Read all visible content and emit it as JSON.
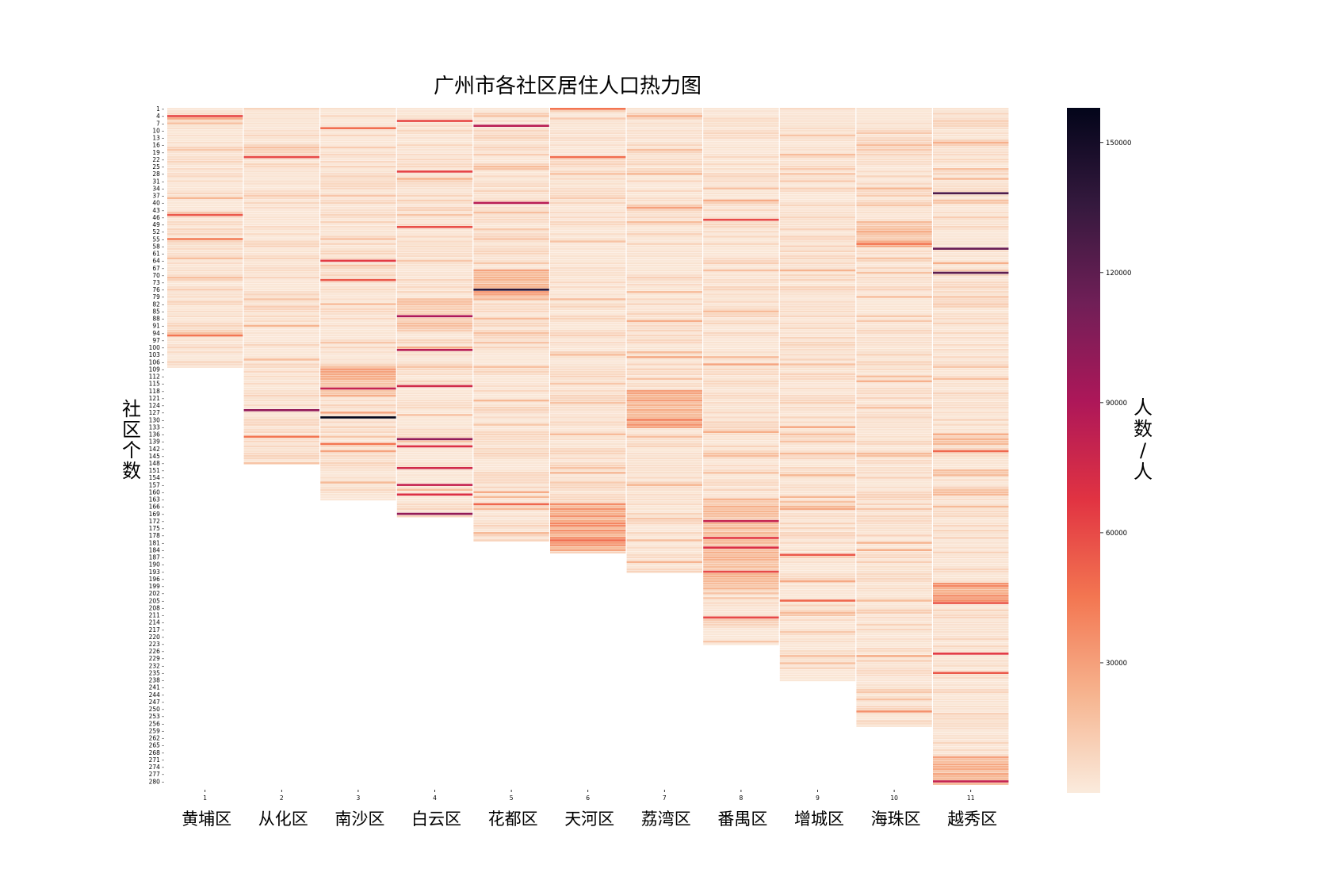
{
  "chart_data": {
    "type": "heatmap",
    "title": "广州市各社区居住人口热力图",
    "ylabel": "社区个数",
    "colorbar_label": "人数/人",
    "colorbar_ticks": [
      30000,
      60000,
      90000,
      120000,
      150000
    ],
    "color_range": [
      0,
      158000
    ],
    "colormap": "rocket_r",
    "colormap_stops": [
      "#faebdd",
      "#f6b48f",
      "#f37651",
      "#e13342",
      "#ad1759",
      "#701f57",
      "#35193e",
      "#03051a"
    ],
    "grid": false,
    "colorbar_position": "right",
    "columns": [
      {
        "index": "1",
        "name": "黄埔区",
        "rows": 108
      },
      {
        "index": "2",
        "name": "从化区",
        "rows": 148
      },
      {
        "index": "3",
        "name": "南沙区",
        "rows": 163
      },
      {
        "index": "4",
        "name": "白云区",
        "rows": 170
      },
      {
        "index": "5",
        "name": "花都区",
        "rows": 180
      },
      {
        "index": "6",
        "name": "天河区",
        "rows": 185
      },
      {
        "index": "7",
        "name": "荔湾区",
        "rows": 193
      },
      {
        "index": "8",
        "name": "番禺区",
        "rows": 223
      },
      {
        "index": "9",
        "name": "增城区",
        "rows": 238
      },
      {
        "index": "10",
        "name": "海珠区",
        "rows": 257
      },
      {
        "index": "11",
        "name": "越秀区",
        "rows": 281
      }
    ],
    "row_ticks": [
      "1",
      "4",
      "7",
      "10",
      "13",
      "16",
      "19",
      "22",
      "25",
      "28",
      "31",
      "34",
      "37",
      "40",
      "43",
      "46",
      "49",
      "52",
      "55",
      "58",
      "61",
      "64",
      "67",
      "70",
      "73",
      "76",
      "79",
      "82",
      "85",
      "88",
      "91",
      "94",
      "97",
      "100",
      "103",
      "106",
      "109",
      "112",
      "115",
      "118",
      "121",
      "124",
      "127",
      "130",
      "133",
      "136",
      "139",
      "142",
      "145",
      "148",
      "151",
      "154",
      "157",
      "160",
      "163",
      "166",
      "169",
      "172",
      "175",
      "178",
      "181",
      "184",
      "187",
      "190",
      "193",
      "196",
      "199",
      "202",
      "205",
      "208",
      "211",
      "214",
      "217",
      "220",
      "223",
      "226",
      "229",
      "232",
      "235",
      "238",
      "241",
      "244",
      "247",
      "250",
      "253",
      "256",
      "259",
      "262",
      "265",
      "268",
      "271",
      "274",
      "277",
      "280"
    ],
    "peaks": [
      {
        "column": 1,
        "row": 4,
        "value": 60000
      },
      {
        "column": 1,
        "row": 45,
        "value": 55000
      },
      {
        "column": 1,
        "row": 55,
        "value": 42000
      },
      {
        "column": 1,
        "row": 95,
        "value": 45000
      },
      {
        "column": 2,
        "row": 21,
        "value": 60000
      },
      {
        "column": 2,
        "row": 126,
        "value": 100000
      },
      {
        "column": 2,
        "row": 137,
        "value": 45000
      },
      {
        "column": 3,
        "row": 9,
        "value": 48000
      },
      {
        "column": 3,
        "row": 64,
        "value": 65000
      },
      {
        "column": 3,
        "row": 72,
        "value": 55000
      },
      {
        "column": 3,
        "row": 117,
        "value": 80000
      },
      {
        "column": 3,
        "row": 129,
        "value": 158000
      },
      {
        "column": 3,
        "row": 140,
        "value": 45000
      },
      {
        "column": 4,
        "row": 6,
        "value": 60000
      },
      {
        "column": 4,
        "row": 27,
        "value": 62000
      },
      {
        "column": 4,
        "row": 50,
        "value": 58000
      },
      {
        "column": 4,
        "row": 87,
        "value": 90000
      },
      {
        "column": 4,
        "row": 101,
        "value": 85000
      },
      {
        "column": 4,
        "row": 116,
        "value": 75000
      },
      {
        "column": 4,
        "row": 138,
        "value": 100000
      },
      {
        "column": 4,
        "row": 141,
        "value": 70000
      },
      {
        "column": 4,
        "row": 150,
        "value": 75000
      },
      {
        "column": 4,
        "row": 157,
        "value": 80000
      },
      {
        "column": 4,
        "row": 161,
        "value": 70000
      },
      {
        "column": 4,
        "row": 169,
        "value": 100000
      },
      {
        "column": 5,
        "row": 8,
        "value": 85000
      },
      {
        "column": 5,
        "row": 40,
        "value": 85000
      },
      {
        "column": 5,
        "row": 76,
        "value": 140000
      },
      {
        "column": 5,
        "row": 165,
        "value": 50000
      },
      {
        "column": 6,
        "row": 1,
        "value": 45000
      },
      {
        "column": 6,
        "row": 21,
        "value": 48000
      },
      {
        "column": 6,
        "row": 180,
        "value": 48000
      },
      {
        "column": 7,
        "row": 42,
        "value": 30000
      },
      {
        "column": 7,
        "row": 130,
        "value": 42000
      },
      {
        "column": 8,
        "row": 47,
        "value": 60000
      },
      {
        "column": 8,
        "row": 172,
        "value": 80000
      },
      {
        "column": 8,
        "row": 179,
        "value": 65000
      },
      {
        "column": 8,
        "row": 183,
        "value": 70000
      },
      {
        "column": 8,
        "row": 193,
        "value": 60000
      },
      {
        "column": 8,
        "row": 212,
        "value": 60000
      },
      {
        "column": 9,
        "row": 186,
        "value": 55000
      },
      {
        "column": 9,
        "row": 205,
        "value": 50000
      },
      {
        "column": 10,
        "row": 57,
        "value": 45000
      },
      {
        "column": 10,
        "row": 251,
        "value": 35000
      },
      {
        "column": 11,
        "row": 36,
        "value": 125000
      },
      {
        "column": 11,
        "row": 59,
        "value": 115000
      },
      {
        "column": 11,
        "row": 69,
        "value": 120000
      },
      {
        "column": 11,
        "row": 143,
        "value": 50000
      },
      {
        "column": 11,
        "row": 206,
        "value": 55000
      },
      {
        "column": 11,
        "row": 227,
        "value": 65000
      },
      {
        "column": 11,
        "row": 235,
        "value": 55000
      },
      {
        "column": 11,
        "row": 280,
        "value": 80000
      }
    ],
    "dense_bands": [
      {
        "column": 3,
        "rows": [
          108,
          120
        ],
        "value": 25000
      },
      {
        "column": 4,
        "rows": [
          80,
          92
        ],
        "value": 18000
      },
      {
        "column": 5,
        "rows": [
          68,
          79
        ],
        "value": 28000
      },
      {
        "column": 6,
        "rows": [
          165,
          184
        ],
        "value": 32000
      },
      {
        "column": 7,
        "rows": [
          118,
          133
        ],
        "value": 28000
      },
      {
        "column": 8,
        "rows": [
          163,
          200
        ],
        "value": 20000
      },
      {
        "column": 10,
        "rows": [
          48,
          58
        ],
        "value": 22000
      },
      {
        "column": 11,
        "rows": [
          198,
          206
        ],
        "value": 32000
      },
      {
        "column": 11,
        "rows": [
          270,
          281
        ],
        "value": 24000
      }
    ]
  }
}
